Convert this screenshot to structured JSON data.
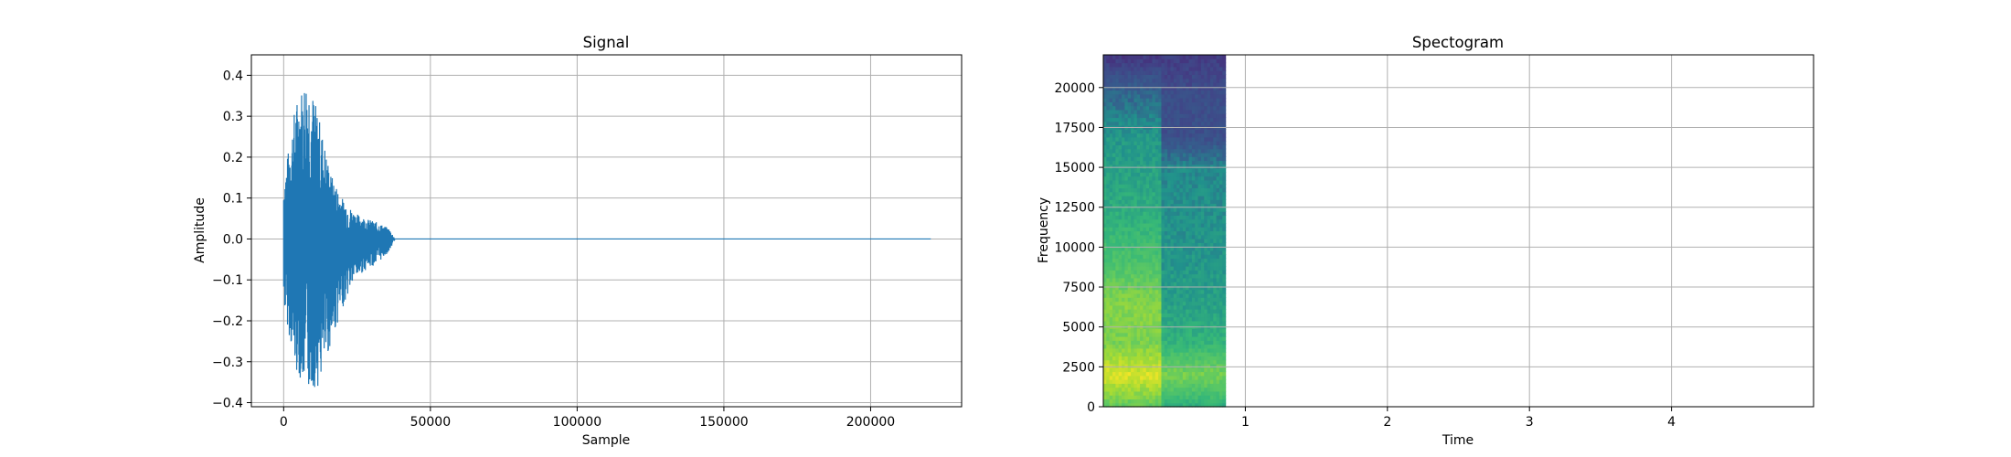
{
  "chart_data": [
    {
      "type": "line",
      "title": "Signal",
      "xlabel": "Sample",
      "ylabel": "Amplitude",
      "xlim": [
        -11000,
        231000
      ],
      "ylim": [
        -0.41,
        0.45
      ],
      "xticks": [
        0,
        50000,
        100000,
        150000,
        200000
      ],
      "xtick_labels": [
        "0",
        "50000",
        "100000",
        "150000",
        "200000"
      ],
      "yticks": [
        -0.4,
        -0.3,
        -0.2,
        -0.1,
        0.0,
        0.1,
        0.2,
        0.3,
        0.4
      ],
      "ytick_labels": [
        "−0.4",
        "−0.3",
        "−0.2",
        "−0.1",
        "0.0",
        "0.1",
        "0.2",
        "0.3",
        "0.4"
      ],
      "grid": true,
      "series_color": "#1f77b4",
      "series": [
        {
          "x": [
            0,
            4000,
            8000,
            12000,
            16000,
            20000,
            24000,
            28000,
            32000,
            36000,
            38000,
            220500
          ],
          "envelope_upper": [
            0.14,
            0.33,
            0.41,
            0.3,
            0.16,
            0.1,
            0.065,
            0.05,
            0.04,
            0.025,
            0.0,
            0.0
          ],
          "envelope_lower": [
            -0.16,
            -0.32,
            -0.37,
            -0.36,
            -0.26,
            -0.17,
            -0.1,
            -0.075,
            -0.06,
            -0.03,
            0.0,
            0.0
          ]
        }
      ]
    },
    {
      "type": "heatmap",
      "title": "Spectogram",
      "xlabel": "Time",
      "ylabel": "Frequency",
      "xlim": [
        0,
        5.0
      ],
      "ylim": [
        0,
        22050
      ],
      "xticks": [
        1,
        2,
        3,
        4
      ],
      "xtick_labels": [
        "1",
        "2",
        "3",
        "4"
      ],
      "yticks": [
        0,
        2500,
        5000,
        7500,
        10000,
        12500,
        15000,
        17500,
        20000
      ],
      "ytick_labels": [
        "0",
        "2500",
        "5000",
        "7500",
        "10000",
        "12500",
        "15000",
        "17500",
        "20000"
      ],
      "grid": true,
      "colormap": "viridis",
      "data_time_range": [
        0,
        0.86
      ],
      "data_freq_range": [
        0,
        22050
      ],
      "approx_levels_by_freq": [
        {
          "freq": 0,
          "level_early": 0.75,
          "level_late": 0.6
        },
        {
          "freq": 2000,
          "level_early": 0.95,
          "level_late": 0.8
        },
        {
          "freq": 4000,
          "level_early": 0.8,
          "level_late": 0.62
        },
        {
          "freq": 6500,
          "level_early": 0.82,
          "level_late": 0.55
        },
        {
          "freq": 9000,
          "level_early": 0.7,
          "level_late": 0.52
        },
        {
          "freq": 12000,
          "level_early": 0.6,
          "level_late": 0.5
        },
        {
          "freq": 15000,
          "level_early": 0.55,
          "level_late": 0.48
        },
        {
          "freq": 17000,
          "level_early": 0.52,
          "level_late": 0.3
        },
        {
          "freq": 19500,
          "level_early": 0.4,
          "level_late": 0.3
        },
        {
          "freq": 22050,
          "level_early": 0.2,
          "level_late": 0.22
        }
      ]
    }
  ]
}
